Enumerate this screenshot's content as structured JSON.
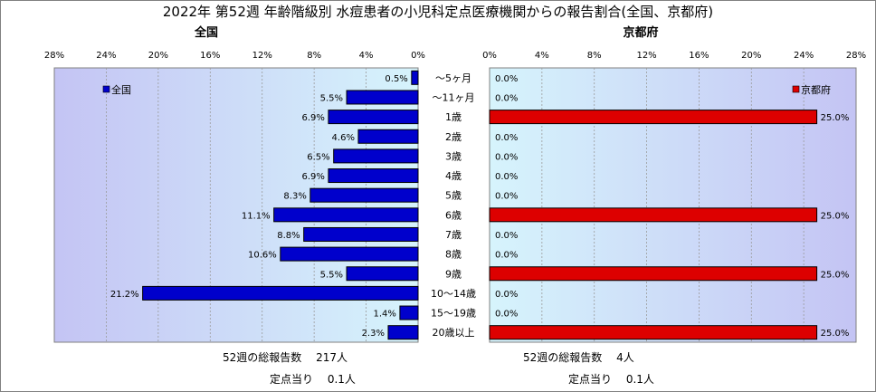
{
  "chart_data": {
    "type": "bar",
    "title": "2022年 第52週 年齢階級別 水痘患者の小児科定点医療機関からの報告割合(全国、京都府)",
    "categories": [
      "～5ヶ月",
      "～11ヶ月",
      "1歳",
      "2歳",
      "3歳",
      "4歳",
      "5歳",
      "6歳",
      "7歳",
      "8歳",
      "9歳",
      "10～14歳",
      "15～19歳",
      "20歳以上"
    ],
    "series": [
      {
        "name": "全国",
        "panel_title": "全国",
        "color": "#0000cc",
        "values": [
          0.5,
          5.5,
          6.9,
          4.6,
          6.5,
          6.9,
          8.3,
          11.1,
          8.8,
          10.6,
          5.5,
          21.2,
          1.4,
          2.3
        ],
        "labels": [
          "0.5%",
          "5.5%",
          "6.9%",
          "4.6%",
          "6.5%",
          "6.9%",
          "8.3%",
          "11.1%",
          "8.8%",
          "10.6%",
          "5.5%",
          "21.2%",
          "1.4%",
          "2.3%"
        ]
      },
      {
        "name": "京都府",
        "panel_title": "京都府",
        "color": "#dd0000",
        "values": [
          0.0,
          0.0,
          25.0,
          0.0,
          0.0,
          0.0,
          0.0,
          25.0,
          0.0,
          0.0,
          25.0,
          0.0,
          0.0,
          25.0
        ],
        "labels": [
          "0.0%",
          "0.0%",
          "25.0%",
          "0.0%",
          "0.0%",
          "0.0%",
          "0.0%",
          "25.0%",
          "0.0%",
          "0.0%",
          "25.0%",
          "0.0%",
          "0.0%",
          "25.0%"
        ]
      }
    ],
    "xlim": [
      0,
      28
    ],
    "xticks": [
      "28%",
      "24%",
      "20%",
      "16%",
      "12%",
      "8%",
      "4%",
      "0%"
    ],
    "xticks_right": [
      "0%",
      "4%",
      "8%",
      "12%",
      "16%",
      "20%",
      "24%",
      "28%"
    ],
    "grid": true,
    "legend_left": "top-left",
    "legend_right": "top-right"
  },
  "footer": {
    "left_total": "52週の総報告数　 217人",
    "left_per": "定点当り　 0.1人",
    "right_total": "52週の総報告数　 4人",
    "right_per": "定点当り　 0.1人"
  }
}
